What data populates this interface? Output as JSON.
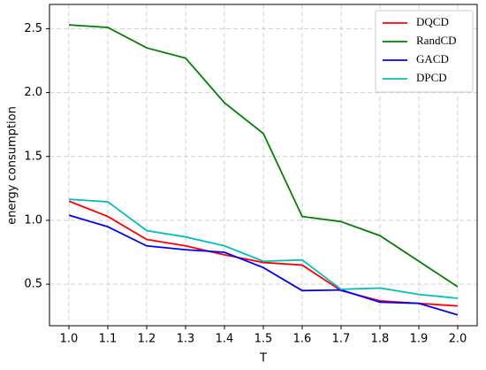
{
  "chart_data": {
    "type": "line",
    "x_label": "T",
    "y_label": "energy consumption",
    "x": [
      1.0,
      1.1,
      1.2,
      1.3,
      1.4,
      1.5,
      1.6,
      1.7,
      1.8,
      1.9,
      2.0
    ],
    "series": [
      {
        "name": "DQCD",
        "color": "#ff0000",
        "values": [
          1.15,
          1.03,
          0.85,
          0.8,
          0.73,
          0.67,
          0.65,
          0.45,
          0.37,
          0.35,
          0.33
        ]
      },
      {
        "name": "RandCD",
        "color": "#008000",
        "values": [
          2.53,
          2.51,
          2.35,
          2.27,
          1.92,
          1.68,
          1.03,
          0.99,
          0.88,
          0.68,
          0.48
        ]
      },
      {
        "name": "GACD",
        "color": "#0000ff",
        "values": [
          1.04,
          0.95,
          0.8,
          0.77,
          0.75,
          0.63,
          0.45,
          0.455,
          0.36,
          0.35,
          0.26
        ]
      },
      {
        "name": "DPCD",
        "color": "#00bfbf",
        "values": [
          1.165,
          1.145,
          0.92,
          0.87,
          0.8,
          0.68,
          0.69,
          0.46,
          0.47,
          0.42,
          0.39
        ]
      }
    ],
    "xlim": [
      0.95,
      2.05
    ],
    "xticks": [
      {
        "value": 1.0,
        "label": "1.0"
      },
      1.1,
      1.2,
      1.3,
      1.4,
      1.5,
      1.6,
      1.7,
      1.8,
      1.9,
      {
        "value": 2.0,
        "label": "2.0"
      }
    ],
    "ylim": [
      0.175,
      2.69
    ],
    "yticks": [
      0.5,
      {
        "value": 1.0,
        "label": "1.0"
      },
      1.5,
      {
        "value": 2.0,
        "label": "2.0"
      },
      2.5
    ],
    "grid": true,
    "legend": "upper right"
  }
}
